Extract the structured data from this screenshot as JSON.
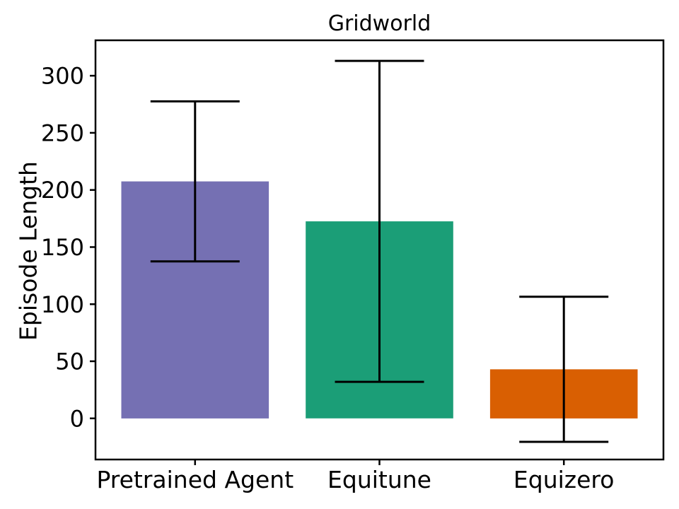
{
  "chart_data": {
    "type": "bar",
    "title": "Gridworld",
    "xlabel": "",
    "ylabel": "Episode Length",
    "categories": [
      "Pretrained Agent",
      "Equitune",
      "Equizero"
    ],
    "values": [
      207.5,
      172.5,
      43
    ],
    "errors": [
      70,
      140.5,
      63.5
    ],
    "error_bounds": [
      {
        "low": 137.5,
        "high": 277.5
      },
      {
        "low": 32,
        "high": 313
      },
      {
        "low": -20.5,
        "high": 106.5
      }
    ],
    "bar_colors": [
      "#7570b3",
      "#1b9e77",
      "#d95f02"
    ],
    "yticks": [
      0,
      50,
      100,
      150,
      200,
      250,
      300
    ],
    "ylim": [
      -36,
      331
    ],
    "grid": false,
    "legend": null,
    "error_bar_color": "#000000",
    "axis_color": "#000000",
    "background_color": "#ffffff"
  }
}
